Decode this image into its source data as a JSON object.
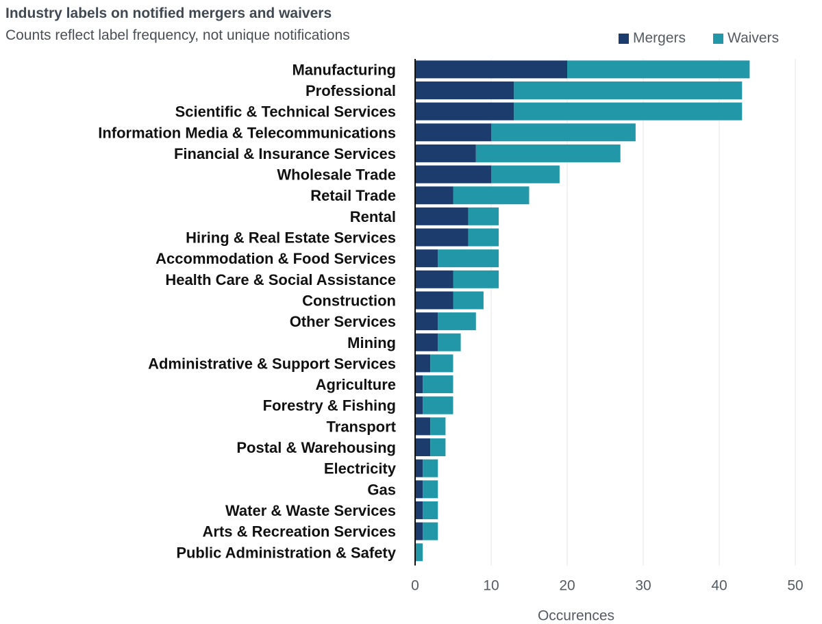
{
  "chart_data": {
    "type": "bar",
    "orientation": "horizontal",
    "stacked": true,
    "title": "Industry labels on notified mergers and waivers",
    "subtitle": "Counts reflect label frequency, not unique notifications",
    "xlabel": "Occurences",
    "ylabel": "",
    "xlim": [
      0,
      50
    ],
    "xticks": [
      "0",
      "10",
      "20",
      "30",
      "40",
      "50"
    ],
    "xtick_values": [
      0,
      10,
      20,
      30,
      40,
      50
    ],
    "grid": true,
    "legend_position": "top-right",
    "categories": [
      "Manufacturing",
      "Professional",
      "Scientific & Technical Services",
      "Information Media & Telecommunications",
      "Financial & Insurance Services",
      "Wholesale Trade",
      "Retail Trade",
      "Rental",
      "Hiring & Real Estate Services",
      "Accommodation & Food Services",
      "Health Care & Social Assistance",
      "Construction",
      "Other Services",
      "Mining",
      "Administrative & Support Services",
      "Agriculture",
      "Forestry & Fishing",
      "Transport",
      "Postal & Warehousing",
      "Electricity",
      "Gas",
      "Water & Waste Services",
      "Arts & Recreation Services",
      "Public Administration & Safety"
    ],
    "series": [
      {
        "name": "Mergers",
        "color": "#1d3c6e",
        "values": [
          20,
          13,
          13,
          10,
          8,
          10,
          5,
          7,
          7,
          3,
          5,
          5,
          3,
          3,
          2,
          1,
          1,
          2,
          2,
          1,
          1,
          1,
          1,
          0
        ]
      },
      {
        "name": "Waivers",
        "color": "#2297a8",
        "values": [
          24,
          30,
          30,
          19,
          19,
          9,
          10,
          4,
          4,
          8,
          6,
          4,
          5,
          3,
          3,
          4,
          4,
          2,
          2,
          2,
          2,
          2,
          2,
          1
        ]
      }
    ]
  },
  "colors": {
    "grid": "#e6e6e6",
    "axis": "#111111",
    "title": "#404852",
    "text": "#555b62"
  }
}
